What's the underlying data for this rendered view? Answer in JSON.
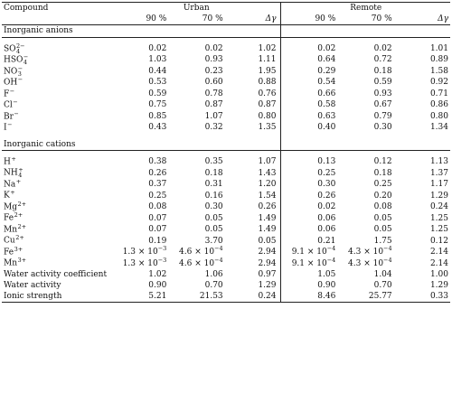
{
  "header": {
    "compound": "Compound",
    "urban": "Urban",
    "remote": "Remote",
    "col_90": "90 %",
    "col_70": "70 %",
    "col_delta": "Δγ"
  },
  "sections": [
    {
      "title": "Inorganic anions",
      "rows": [
        {
          "base": "SO",
          "sub": "4",
          "sup": "2−",
          "u90": "0.02",
          "u70": "0.02",
          "ud": "1.02",
          "r90": "0.02",
          "r70": "0.02",
          "rd": "1.01"
        },
        {
          "base": "HSO",
          "sub": "4",
          "sup": "−",
          "u90": "1.03",
          "u70": "0.93",
          "ud": "1.11",
          "r90": "0.64",
          "r70": "0.72",
          "rd": "0.89"
        },
        {
          "base": "NO",
          "sub": "3",
          "sup": "−",
          "u90": "0.44",
          "u70": "0.23",
          "ud": "1.95",
          "r90": "0.29",
          "r70": "0.18",
          "rd": "1.58"
        },
        {
          "base": "OH",
          "sub": "",
          "sup": "−",
          "u90": "0.53",
          "u70": "0.60",
          "ud": "0.88",
          "r90": "0.54",
          "r70": "0.59",
          "rd": "0.92"
        },
        {
          "base": "F",
          "sub": "",
          "sup": "−",
          "u90": "0.59",
          "u70": "0.78",
          "ud": "0.76",
          "r90": "0.66",
          "r70": "0.93",
          "rd": "0.71"
        },
        {
          "base": "Cl",
          "sub": "",
          "sup": "−",
          "u90": "0.75",
          "u70": "0.87",
          "ud": "0.87",
          "r90": "0.58",
          "r70": "0.67",
          "rd": "0.86"
        },
        {
          "base": "Br",
          "sub": "",
          "sup": "−",
          "u90": "0.85",
          "u70": "1.07",
          "ud": "0.80",
          "r90": "0.63",
          "r70": "0.79",
          "rd": "0.80"
        },
        {
          "base": "I",
          "sub": "",
          "sup": "−",
          "u90": "0.43",
          "u70": "0.32",
          "ud": "1.35",
          "r90": "0.40",
          "r70": "0.30",
          "rd": "1.34"
        }
      ]
    },
    {
      "title": "Inorganic cations",
      "rows": [
        {
          "base": "H",
          "sub": "",
          "sup": "+",
          "u90": "0.38",
          "u70": "0.35",
          "ud": "1.07",
          "r90": "0.13",
          "r70": "0.12",
          "rd": "1.13"
        },
        {
          "base": "NH",
          "sub": "4",
          "sup": "+",
          "u90": "0.26",
          "u70": "0.18",
          "ud": "1.43",
          "r90": "0.25",
          "r70": "0.18",
          "rd": "1.37"
        },
        {
          "base": "Na",
          "sub": "",
          "sup": "+",
          "u90": "0.37",
          "u70": "0.31",
          "ud": "1.20",
          "r90": "0.30",
          "r70": "0.25",
          "rd": "1.17"
        },
        {
          "base": "K",
          "sub": "",
          "sup": "+",
          "u90": "0.25",
          "u70": "0.16",
          "ud": "1.54",
          "r90": "0.26",
          "r70": "0.20",
          "rd": "1.29"
        },
        {
          "base": "Mg",
          "sub": "",
          "sup": "2+",
          "u90": "0.08",
          "u70": "0.30",
          "ud": "0.26",
          "r90": "0.02",
          "r70": "0.08",
          "rd": "0.24"
        },
        {
          "base": "Fe",
          "sub": "",
          "sup": "2+",
          "u90": "0.07",
          "u70": "0.05",
          "ud": "1.49",
          "r90": "0.06",
          "r70": "0.05",
          "rd": "1.25"
        },
        {
          "base": "Mn",
          "sub": "",
          "sup": "2+",
          "u90": "0.07",
          "u70": "0.05",
          "ud": "1.49",
          "r90": "0.06",
          "r70": "0.05",
          "rd": "1.25"
        },
        {
          "base": "Cu",
          "sub": "",
          "sup": "2+",
          "u90": "0.19",
          "u70": "3.70",
          "ud": "0.05",
          "r90": "0.21",
          "r70": "1.75",
          "rd": "0.12"
        },
        {
          "base": "Fe",
          "sub": "",
          "sup": "3+",
          "u90": "1.3 × 10−3",
          "u70": "4.6 × 10−4",
          "ud": "2.94",
          "r90": "9.1 × 10−4",
          "r70": "4.3 × 10−4",
          "rd": "2.14"
        },
        {
          "base": "Mn",
          "sub": "",
          "sup": "3+",
          "u90": "1.3 × 10−3",
          "u70": "4.6 × 10−4",
          "ud": "2.94",
          "r90": "9.1 × 10−4",
          "r70": "4.3 × 10−4",
          "rd": "2.14"
        },
        {
          "base": "Water activity coefficient",
          "sub": "",
          "sup": "",
          "u90": "1.02",
          "u70": "1.06",
          "ud": "0.97",
          "r90": "1.05",
          "r70": "1.04",
          "rd": "1.00"
        },
        {
          "base": "Water activity",
          "sub": "",
          "sup": "",
          "u90": "0.90",
          "u70": "0.70",
          "ud": "1.29",
          "r90": "0.90",
          "r70": "0.70",
          "rd": "1.29"
        },
        {
          "base": "Ionic strength",
          "sub": "",
          "sup": "",
          "u90": "5.21",
          "u70": "21.53",
          "ud": "0.24",
          "r90": "8.46",
          "r70": "25.77",
          "rd": "0.33"
        }
      ]
    }
  ]
}
